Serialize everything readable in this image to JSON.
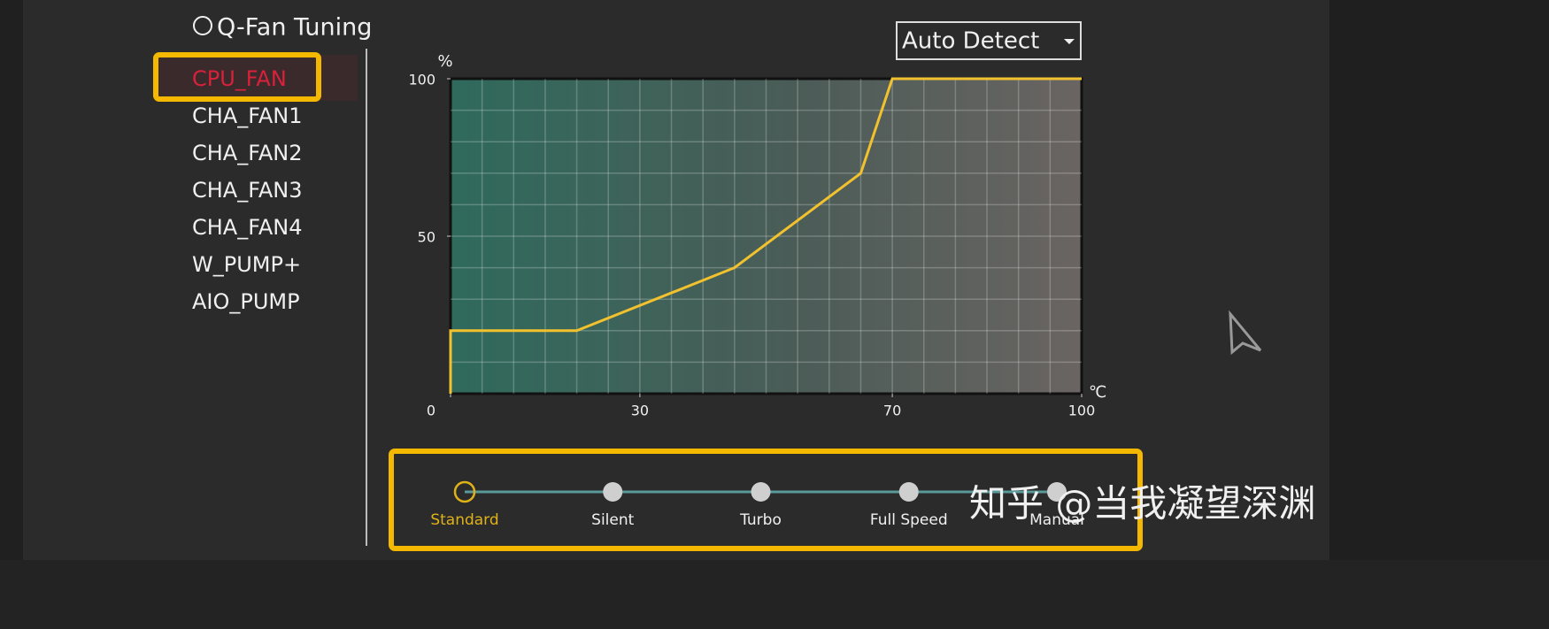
{
  "header": {
    "title": "Q-Fan Tuning"
  },
  "fan_list": {
    "items": [
      "CPU_FAN",
      "CHA_FAN1",
      "CHA_FAN2",
      "CHA_FAN3",
      "CHA_FAN4",
      "W_PUMP+",
      "AIO_PUMP"
    ],
    "selected": "CPU_FAN"
  },
  "dropdown": {
    "label": "Auto Detect"
  },
  "chart_data": {
    "type": "line",
    "y_label": "%",
    "x_label": "℃",
    "x": [
      0,
      0,
      20,
      45,
      65,
      70,
      100
    ],
    "values": [
      0,
      20,
      20,
      40,
      70,
      100,
      100
    ],
    "color": "#f2c12e",
    "xlim": [
      0,
      100
    ],
    "ylim": [
      0,
      100
    ],
    "xticks": [
      0,
      30,
      70,
      100
    ],
    "yticks": [
      50,
      100
    ],
    "grid": true
  },
  "profiles": {
    "items": [
      "Standard",
      "Silent",
      "Turbo",
      "Full Speed",
      "Manual"
    ],
    "selected": "Standard"
  },
  "watermark": "知乎 @当我凝望深渊"
}
